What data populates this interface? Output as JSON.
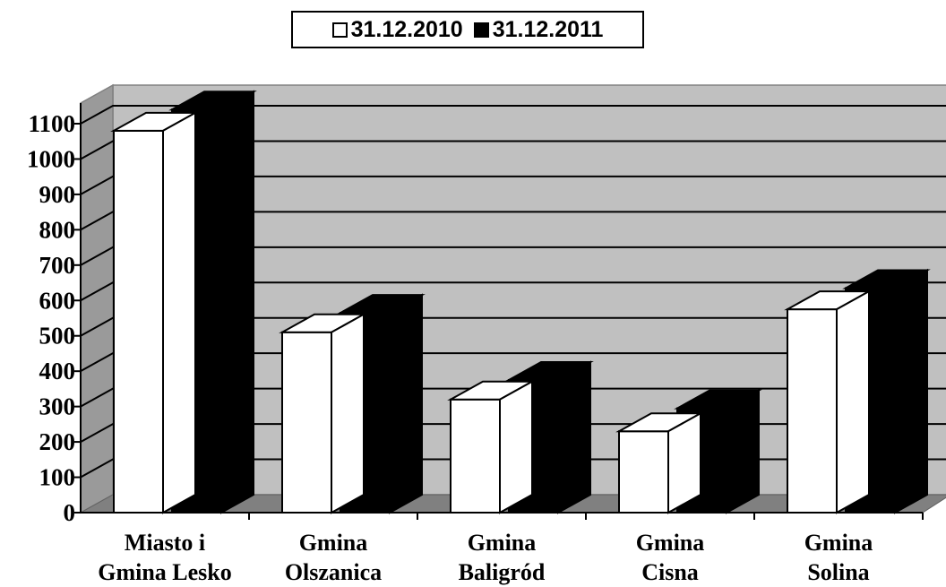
{
  "chart_data": {
    "type": "bar",
    "categories": [
      [
        "Miasto i",
        "Gmina Lesko"
      ],
      [
        "Gmina",
        "Olszanica"
      ],
      [
        "Gmina",
        "Baligród"
      ],
      [
        "Gmina",
        "Cisna"
      ],
      [
        "Gmina",
        "Solina"
      ]
    ],
    "series": [
      {
        "name": "31.12.2010",
        "values": [
          1080,
          510,
          320,
          230,
          575
        ],
        "color": "#ffffff"
      },
      {
        "name": "31.12.2011",
        "values": [
          1140,
          565,
          375,
          295,
          635
        ],
        "color": "#000000"
      }
    ],
    "ylim": [
      0,
      1100
    ],
    "yticks": [
      0,
      100,
      200,
      300,
      400,
      500,
      600,
      700,
      800,
      900,
      1000,
      1100
    ],
    "grid": true,
    "legend_position": "top-center",
    "wall_color": "#c0c0c0",
    "floor_color": "#808080"
  }
}
